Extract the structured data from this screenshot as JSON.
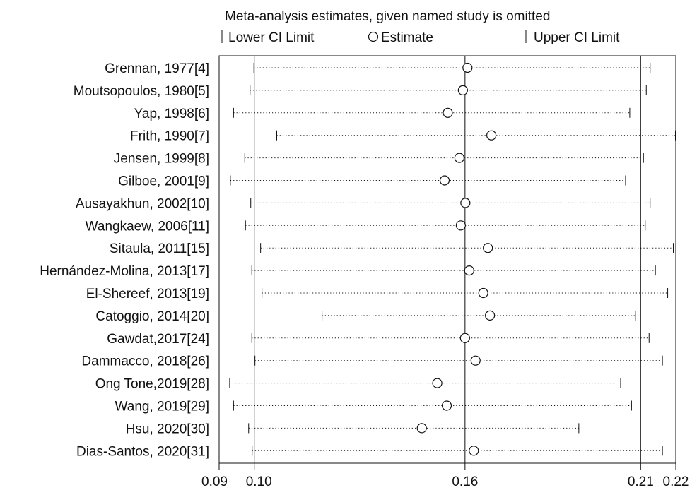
{
  "chart_data": {
    "type": "forest",
    "title": "Meta-analysis estimates, given named study is omitted",
    "legend": {
      "lower": "Lower CI Limit",
      "estimate": "Estimate",
      "upper": "Upper CI Limit"
    },
    "xlim": [
      0.09,
      0.22
    ],
    "xticks": [
      {
        "value": 0.09,
        "label": "0.09"
      },
      {
        "value": 0.1,
        "label": "0.10"
      },
      {
        "value": 0.16,
        "label": "0.16"
      },
      {
        "value": 0.21,
        "label": "0.21"
      },
      {
        "value": 0.22,
        "label": "0.22"
      }
    ],
    "reference_lines": [
      0.1,
      0.16,
      0.21
    ],
    "studies": [
      {
        "name": "Grennan, 1977[4]",
        "lower": 0.0999,
        "estimate": 0.1607,
        "upper": 0.2127
      },
      {
        "name": "Moutsopoulos, 1980[5]",
        "lower": 0.0988,
        "estimate": 0.1594,
        "upper": 0.2116
      },
      {
        "name": "Yap, 1998[6]",
        "lower": 0.0941,
        "estimate": 0.1551,
        "upper": 0.2069
      },
      {
        "name": "Frith, 1990[7]",
        "lower": 0.1064,
        "estimate": 0.1675,
        "upper": 0.2199
      },
      {
        "name": "Jensen, 1999[8]",
        "lower": 0.0973,
        "estimate": 0.1584,
        "upper": 0.2108
      },
      {
        "name": "Gilboe, 2001[9]",
        "lower": 0.0932,
        "estimate": 0.1542,
        "upper": 0.2057
      },
      {
        "name": "Ausayakhun, 2002[10]",
        "lower": 0.099,
        "estimate": 0.1601,
        "upper": 0.2127
      },
      {
        "name": "Wangkaew, 2006[11]",
        "lower": 0.0975,
        "estimate": 0.1588,
        "upper": 0.2113
      },
      {
        "name": "Sitaula, 2011[15]",
        "lower": 0.1018,
        "estimate": 0.1665,
        "upper": 0.2193
      },
      {
        "name": "Hernández-Molina, 2013[17]",
        "lower": 0.0993,
        "estimate": 0.1612,
        "upper": 0.2142
      },
      {
        "name": "El-Shereef, 2013[19]",
        "lower": 0.1022,
        "estimate": 0.1652,
        "upper": 0.2177
      },
      {
        "name": "Catoggio, 2014[20]",
        "lower": 0.1193,
        "estimate": 0.1671,
        "upper": 0.2085
      },
      {
        "name": "Gawdat,2017[24]",
        "lower": 0.0993,
        "estimate": 0.16,
        "upper": 0.2124
      },
      {
        "name": "Dammacco, 2018[26]",
        "lower": 0.1002,
        "estimate": 0.163,
        "upper": 0.2162
      },
      {
        "name": "Ong Tone,2019[28]",
        "lower": 0.093,
        "estimate": 0.1521,
        "upper": 0.2043
      },
      {
        "name": "Wang, 2019[29]",
        "lower": 0.0941,
        "estimate": 0.1548,
        "upper": 0.2074
      },
      {
        "name": "Hsu, 2020[30]",
        "lower": 0.0984,
        "estimate": 0.1477,
        "upper": 0.1924
      },
      {
        "name": "Dias-Santos, 2020[31]",
        "lower": 0.0994,
        "estimate": 0.1625,
        "upper": 0.2162
      }
    ]
  }
}
